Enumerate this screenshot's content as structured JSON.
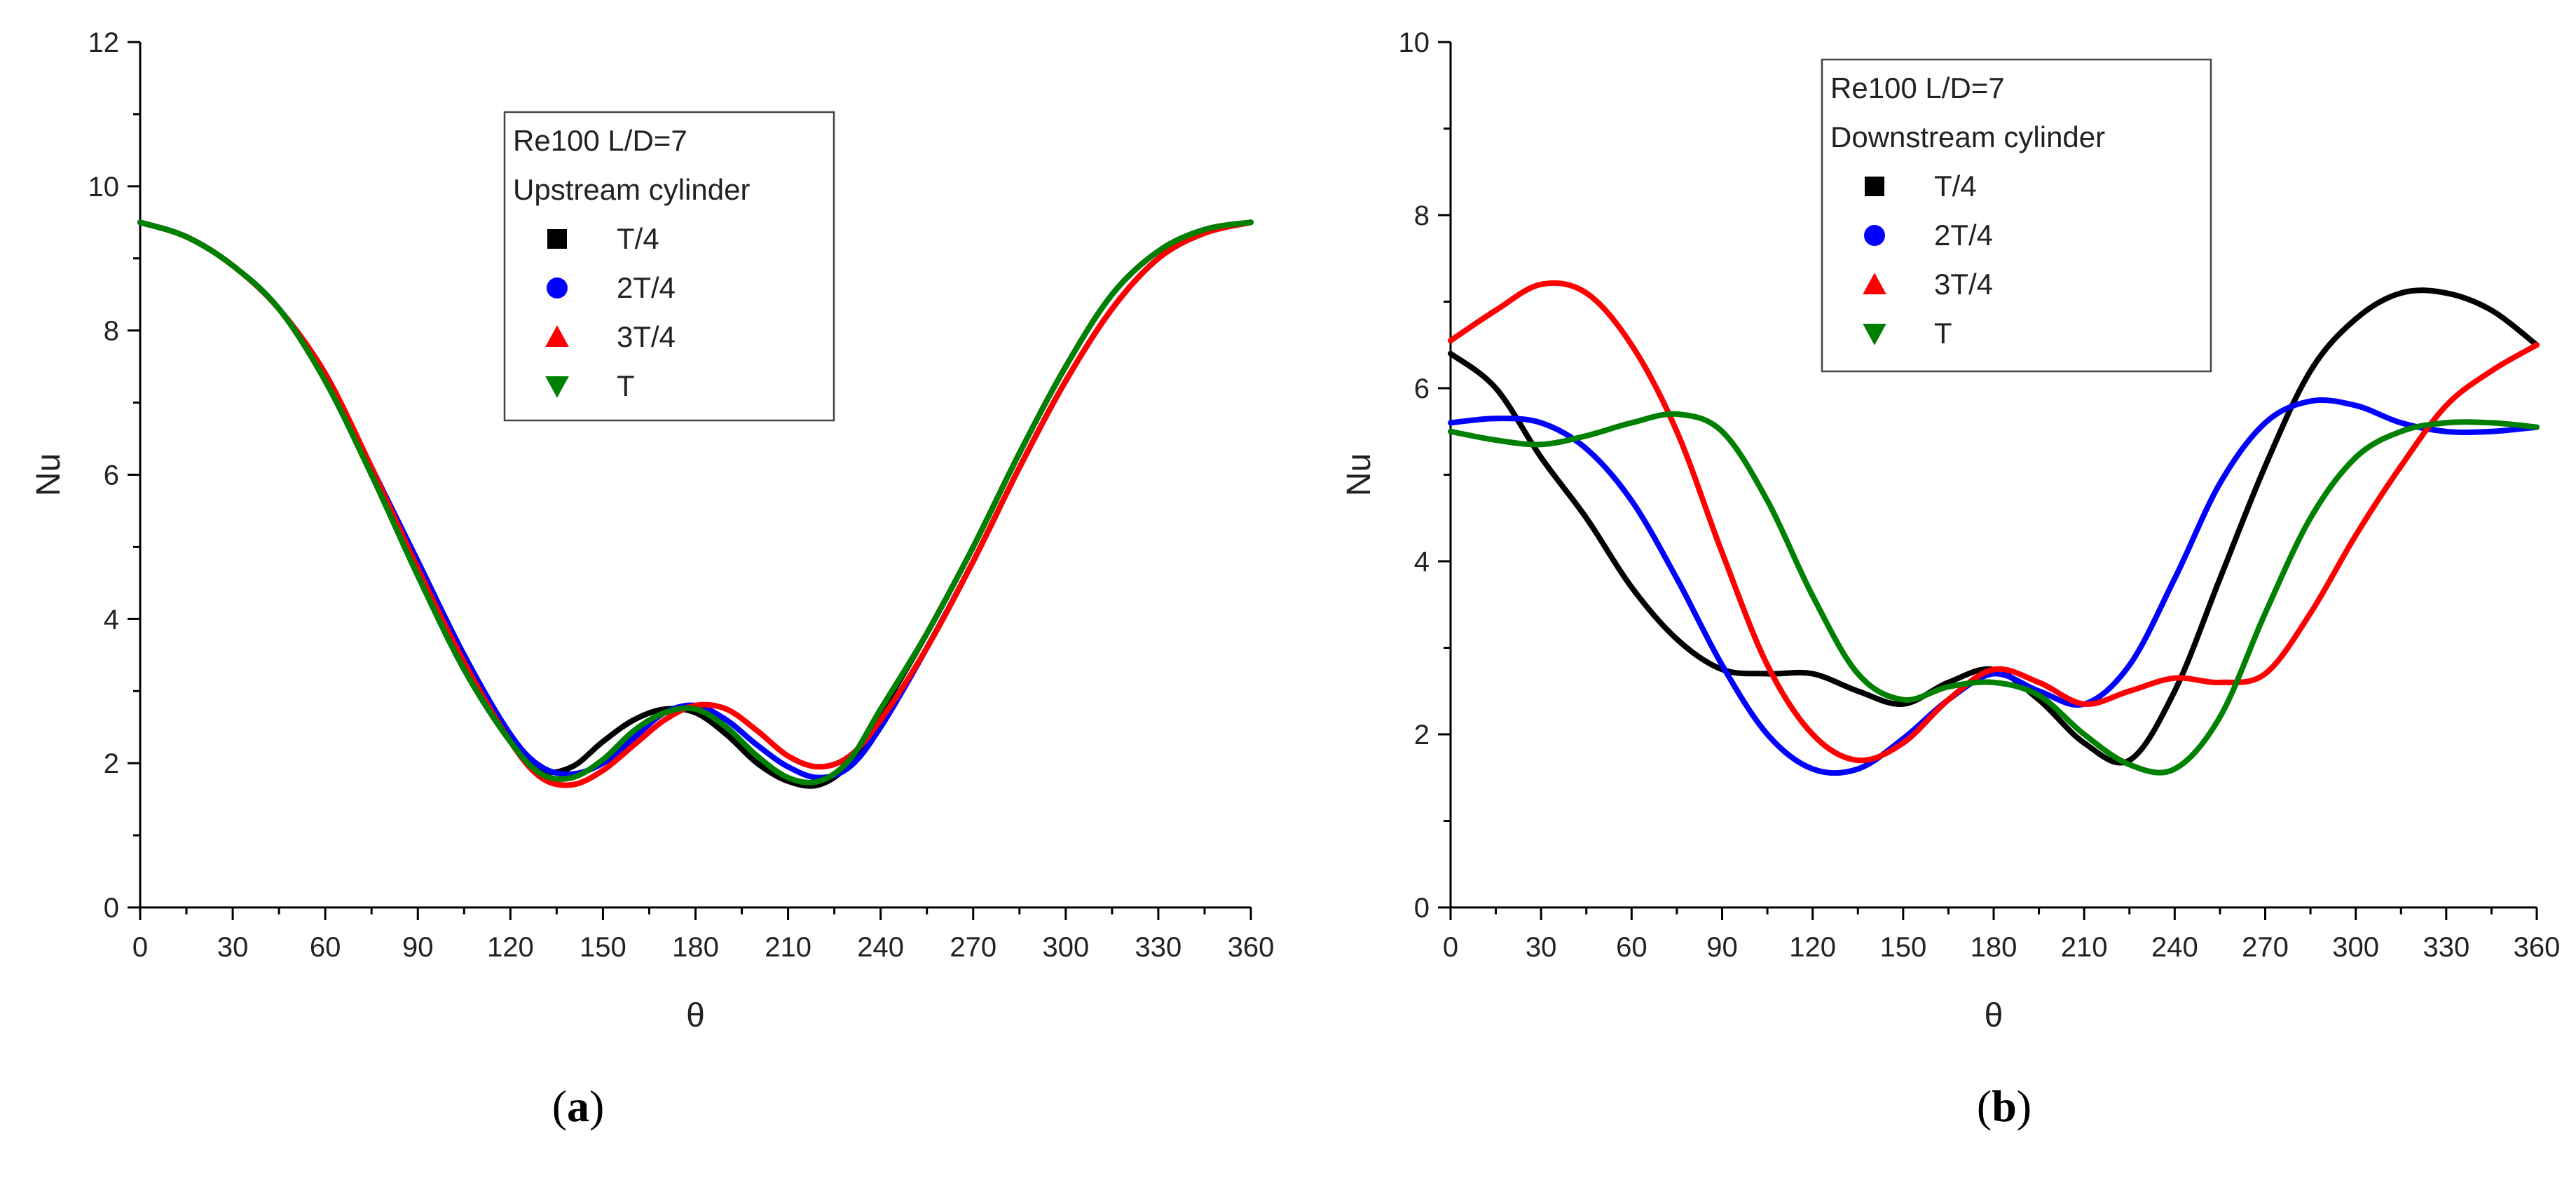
{
  "chart_data": [
    {
      "type": "line",
      "panel_label": "(a)",
      "xlabel": "θ",
      "ylabel": "Nu",
      "xlim": [
        0,
        360
      ],
      "ylim": [
        0,
        12
      ],
      "xticks": [
        0,
        30,
        60,
        90,
        120,
        150,
        180,
        210,
        240,
        270,
        300,
        330,
        360
      ],
      "yticks": [
        0,
        2,
        4,
        6,
        8,
        10,
        12
      ],
      "legend": {
        "position": "top-center",
        "title_lines": [
          "Re100 L/D=7",
          "Upstream cylinder"
        ]
      },
      "series": [
        {
          "name": "T/4",
          "color": "#000000",
          "marker": "square",
          "x": [
            0,
            15,
            30,
            45,
            60,
            75,
            90,
            105,
            120,
            130,
            140,
            150,
            160,
            170,
            180,
            190,
            200,
            210,
            220,
            230,
            240,
            255,
            270,
            285,
            300,
            315,
            330,
            345,
            360
          ],
          "y": [
            9.5,
            9.3,
            8.9,
            8.3,
            7.3,
            6.0,
            4.6,
            3.3,
            2.3,
            1.9,
            1.95,
            2.3,
            2.6,
            2.75,
            2.7,
            2.4,
            2.0,
            1.75,
            1.7,
            2.0,
            2.7,
            3.8,
            5.0,
            6.3,
            7.5,
            8.5,
            9.1,
            9.4,
            9.5
          ]
        },
        {
          "name": "2T/4",
          "color": "#0000ff",
          "marker": "circle",
          "x": [
            0,
            15,
            30,
            45,
            60,
            75,
            90,
            105,
            120,
            130,
            140,
            150,
            160,
            170,
            180,
            190,
            200,
            210,
            220,
            230,
            240,
            255,
            270,
            285,
            300,
            315,
            330,
            345,
            360
          ],
          "y": [
            9.5,
            9.3,
            8.9,
            8.3,
            7.4,
            6.1,
            4.8,
            3.5,
            2.4,
            1.95,
            1.85,
            2.0,
            2.35,
            2.7,
            2.8,
            2.6,
            2.25,
            1.95,
            1.8,
            1.95,
            2.5,
            3.6,
            4.8,
            6.1,
            7.3,
            8.3,
            9.0,
            9.35,
            9.5
          ]
        },
        {
          "name": "3T/4",
          "color": "#ff0000",
          "marker": "triangle-up",
          "x": [
            0,
            15,
            30,
            45,
            60,
            75,
            90,
            105,
            120,
            130,
            140,
            150,
            160,
            170,
            180,
            190,
            200,
            210,
            220,
            230,
            240,
            255,
            270,
            285,
            300,
            315,
            330,
            345,
            360
          ],
          "y": [
            9.5,
            9.3,
            8.9,
            8.3,
            7.4,
            6.1,
            4.7,
            3.4,
            2.3,
            1.8,
            1.7,
            1.9,
            2.25,
            2.6,
            2.8,
            2.75,
            2.45,
            2.1,
            1.95,
            2.1,
            2.6,
            3.6,
            4.8,
            6.1,
            7.3,
            8.3,
            9.0,
            9.35,
            9.5
          ]
        },
        {
          "name": "T",
          "color": "#008000",
          "marker": "triangle-down",
          "x": [
            0,
            15,
            30,
            45,
            60,
            75,
            90,
            105,
            120,
            130,
            140,
            150,
            160,
            170,
            180,
            190,
            200,
            210,
            220,
            230,
            240,
            255,
            270,
            285,
            300,
            315,
            330,
            345,
            360
          ],
          "y": [
            9.5,
            9.3,
            8.9,
            8.3,
            7.3,
            6.0,
            4.6,
            3.3,
            2.3,
            1.85,
            1.8,
            2.05,
            2.45,
            2.7,
            2.75,
            2.5,
            2.1,
            1.8,
            1.75,
            2.05,
            2.75,
            3.8,
            5.0,
            6.3,
            7.5,
            8.5,
            9.1,
            9.4,
            9.5
          ]
        }
      ]
    },
    {
      "type": "line",
      "panel_label": "(b)",
      "xlabel": "θ",
      "ylabel": "Nu",
      "xlim": [
        0,
        360
      ],
      "ylim": [
        0,
        10
      ],
      "xticks": [
        0,
        30,
        60,
        90,
        120,
        150,
        180,
        210,
        240,
        270,
        300,
        330,
        360
      ],
      "yticks": [
        0,
        2,
        4,
        6,
        8,
        10
      ],
      "legend": {
        "position": "top-center",
        "title_lines": [
          "Re100 L/D=7",
          "Downstream cylinder"
        ]
      },
      "series": [
        {
          "name": "T/4",
          "color": "#000000",
          "marker": "square",
          "x": [
            0,
            15,
            30,
            45,
            60,
            75,
            90,
            105,
            120,
            135,
            150,
            165,
            180,
            195,
            210,
            225,
            240,
            255,
            270,
            285,
            300,
            315,
            330,
            345,
            360
          ],
          "y": [
            6.4,
            6.0,
            5.2,
            4.5,
            3.7,
            3.1,
            2.75,
            2.7,
            2.7,
            2.5,
            2.35,
            2.6,
            2.75,
            2.4,
            1.9,
            1.7,
            2.5,
            3.8,
            5.1,
            6.2,
            6.8,
            7.1,
            7.1,
            6.9,
            6.5
          ]
        },
        {
          "name": "2T/4",
          "color": "#0000ff",
          "marker": "circle",
          "x": [
            0,
            15,
            30,
            45,
            60,
            75,
            90,
            105,
            120,
            135,
            150,
            165,
            180,
            195,
            210,
            225,
            240,
            255,
            270,
            285,
            300,
            315,
            330,
            345,
            360
          ],
          "y": [
            5.6,
            5.65,
            5.6,
            5.3,
            4.7,
            3.8,
            2.8,
            2.0,
            1.6,
            1.6,
            1.95,
            2.4,
            2.7,
            2.5,
            2.35,
            2.8,
            3.8,
            4.9,
            5.6,
            5.85,
            5.8,
            5.6,
            5.5,
            5.5,
            5.55
          ]
        },
        {
          "name": "3T/4",
          "color": "#ff0000",
          "marker": "triangle-up",
          "x": [
            0,
            15,
            30,
            45,
            60,
            75,
            90,
            105,
            120,
            135,
            150,
            165,
            180,
            195,
            210,
            225,
            240,
            255,
            270,
            285,
            300,
            315,
            330,
            345,
            360
          ],
          "y": [
            6.55,
            6.9,
            7.2,
            7.1,
            6.5,
            5.5,
            4.1,
            2.8,
            2.0,
            1.7,
            1.9,
            2.4,
            2.75,
            2.6,
            2.35,
            2.5,
            2.65,
            2.6,
            2.7,
            3.4,
            4.3,
            5.1,
            5.8,
            6.2,
            6.5
          ]
        },
        {
          "name": "T",
          "color": "#008000",
          "marker": "triangle-down",
          "x": [
            0,
            15,
            30,
            45,
            60,
            75,
            90,
            105,
            120,
            135,
            150,
            165,
            180,
            195,
            210,
            225,
            240,
            255,
            270,
            285,
            300,
            315,
            330,
            345,
            360
          ],
          "y": [
            5.5,
            5.4,
            5.35,
            5.45,
            5.6,
            5.7,
            5.5,
            4.7,
            3.6,
            2.7,
            2.4,
            2.55,
            2.6,
            2.45,
            2.0,
            1.65,
            1.6,
            2.2,
            3.4,
            4.5,
            5.2,
            5.5,
            5.6,
            5.6,
            5.55
          ]
        }
      ]
    }
  ]
}
